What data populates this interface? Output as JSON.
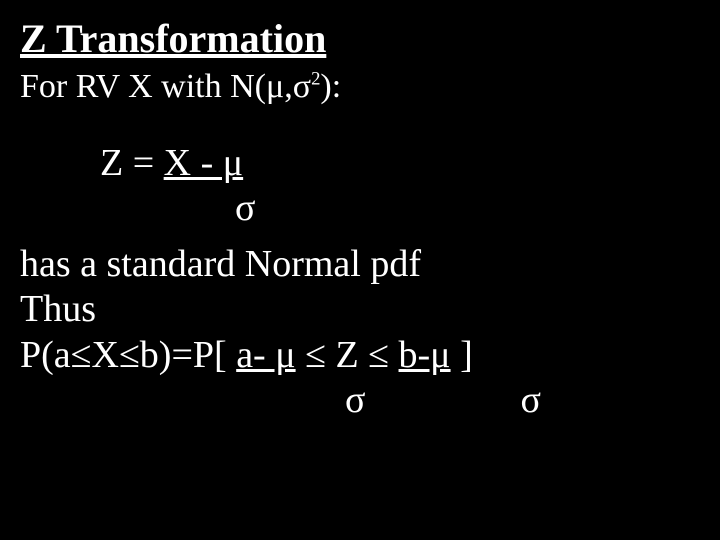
{
  "colors": {
    "background": "#000000",
    "text": "#ffffff"
  },
  "title": "Z Transformation",
  "intro": "For RV X with N(μ,σ",
  "intro_sup": "2",
  "intro_tail": "):",
  "eq": {
    "lhs": "Z = ",
    "frac_top": "X - μ",
    "frac_bot": "σ"
  },
  "body": {
    "l1": "has a standard Normal pdf",
    "l2": "Thus",
    "prob_lhs": "P(a≤X≤b)=P[ ",
    "frac1_top": "a- μ",
    "mid": " ≤ Z ≤ ",
    "frac2_top": "b-μ",
    "tail": " ]",
    "sigma": "σ"
  }
}
